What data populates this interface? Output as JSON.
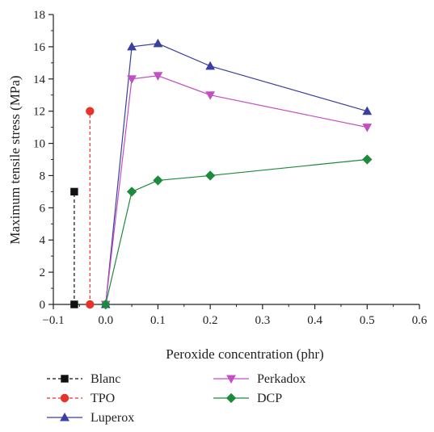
{
  "chart_data": {
    "type": "line",
    "title": "",
    "xlabel": "Peroxide concentration (phr)",
    "ylabel": "Maximum tensile stress (MPa)",
    "xlim": [
      -0.1,
      0.6
    ],
    "ylim": [
      0,
      18
    ],
    "xticks": [
      -0.1,
      0.0,
      0.1,
      0.2,
      0.3,
      0.4,
      0.5,
      0.6
    ],
    "xtick_labels": [
      "−0.1",
      "0.0",
      "0.1",
      "0.2",
      "0.3",
      "0.4",
      "0.5",
      "0.6"
    ],
    "yticks": [
      0,
      2,
      4,
      6,
      8,
      10,
      12,
      14,
      16,
      18
    ],
    "ytick_labels": [
      "0",
      "2",
      "4",
      "6",
      "8",
      "10",
      "12",
      "14",
      "16",
      "18"
    ],
    "grid": false,
    "legend_position": "bottom",
    "series": [
      {
        "name": "Blanc",
        "color": "#111111",
        "dash": "dashed",
        "marker": "square",
        "x": [
          -0.06,
          -0.06
        ],
        "y": [
          0,
          7
        ]
      },
      {
        "name": "TPO",
        "color": "#e8332a",
        "dash": "dashed",
        "marker": "circle",
        "x": [
          -0.03,
          -0.03
        ],
        "y": [
          0,
          12
        ]
      },
      {
        "name": "Luperox",
        "color": "#3b3fa0",
        "dash": "solid",
        "marker": "triangle-up",
        "x": [
          0.0,
          0.05,
          0.1,
          0.2,
          0.5
        ],
        "y": [
          0,
          16,
          16.2,
          14.8,
          12
        ]
      },
      {
        "name": "Perkadox",
        "color": "#c24fc4",
        "dash": "solid",
        "marker": "triangle-down",
        "x": [
          0.0,
          0.05,
          0.1,
          0.2,
          0.5
        ],
        "y": [
          0,
          14,
          14.2,
          13,
          11
        ]
      },
      {
        "name": "DCP",
        "color": "#1e8a3c",
        "dash": "solid",
        "marker": "diamond",
        "x": [
          0.0,
          0.05,
          0.1,
          0.2,
          0.5
        ],
        "y": [
          0,
          7,
          7.7,
          8,
          9
        ]
      }
    ]
  }
}
